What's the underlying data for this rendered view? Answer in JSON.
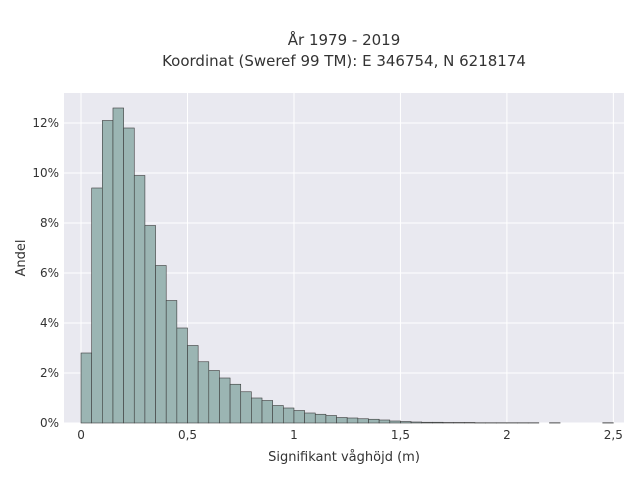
{
  "chart_data": {
    "type": "bar",
    "title": "År 1979 - 2019",
    "subtitle": "Koordinat (Sweref 99 TM): E 346754, N 6218174",
    "xlabel": "Signifikant våghöjd (m)",
    "ylabel": "Andel",
    "xlim": [
      -0.08,
      2.55
    ],
    "ylim": [
      0,
      0.132
    ],
    "x_ticks": [
      0,
      0.5,
      1,
      1.5,
      2,
      2.5
    ],
    "x_tick_labels": [
      "0",
      "0,5",
      "1",
      "1,5",
      "2",
      "2,5"
    ],
    "y_ticks": [
      0,
      0.02,
      0.04,
      0.06,
      0.08,
      0.1,
      0.12
    ],
    "y_tick_labels": [
      "0%",
      "2%",
      "4%",
      "6%",
      "8%",
      "10%",
      "12%"
    ],
    "bin_width": 0.05,
    "bin_starts": [
      0,
      0.05,
      0.1,
      0.15,
      0.2,
      0.25,
      0.3,
      0.35,
      0.4,
      0.45,
      0.5,
      0.55,
      0.6,
      0.65,
      0.7,
      0.75,
      0.8,
      0.85,
      0.9,
      0.95,
      1.0,
      1.05,
      1.1,
      1.15,
      1.2,
      1.25,
      1.3,
      1.35,
      1.4,
      1.45,
      1.5,
      1.55,
      1.6,
      1.65,
      1.7,
      1.75,
      1.8,
      1.85,
      1.9,
      1.95,
      2.0,
      2.05,
      2.1,
      2.2,
      2.45
    ],
    "values": [
      0.028,
      0.094,
      0.121,
      0.126,
      0.118,
      0.099,
      0.079,
      0.063,
      0.049,
      0.038,
      0.031,
      0.0245,
      0.021,
      0.018,
      0.0155,
      0.0125,
      0.01,
      0.009,
      0.007,
      0.006,
      0.005,
      0.004,
      0.0035,
      0.003,
      0.0022,
      0.002,
      0.0017,
      0.0015,
      0.0012,
      0.0008,
      0.0006,
      0.0004,
      0.0003,
      0.0003,
      0.0002,
      0.0002,
      0.0002,
      0.0001,
      0.0001,
      0.0001,
      0.0001,
      0.0001,
      0.0001,
      0.0001,
      0.0001
    ],
    "background_color": "#e9e9f0",
    "bar_color": "#9bb5b3",
    "bar_edge_color": "#3b3b3b",
    "grid": true
  }
}
